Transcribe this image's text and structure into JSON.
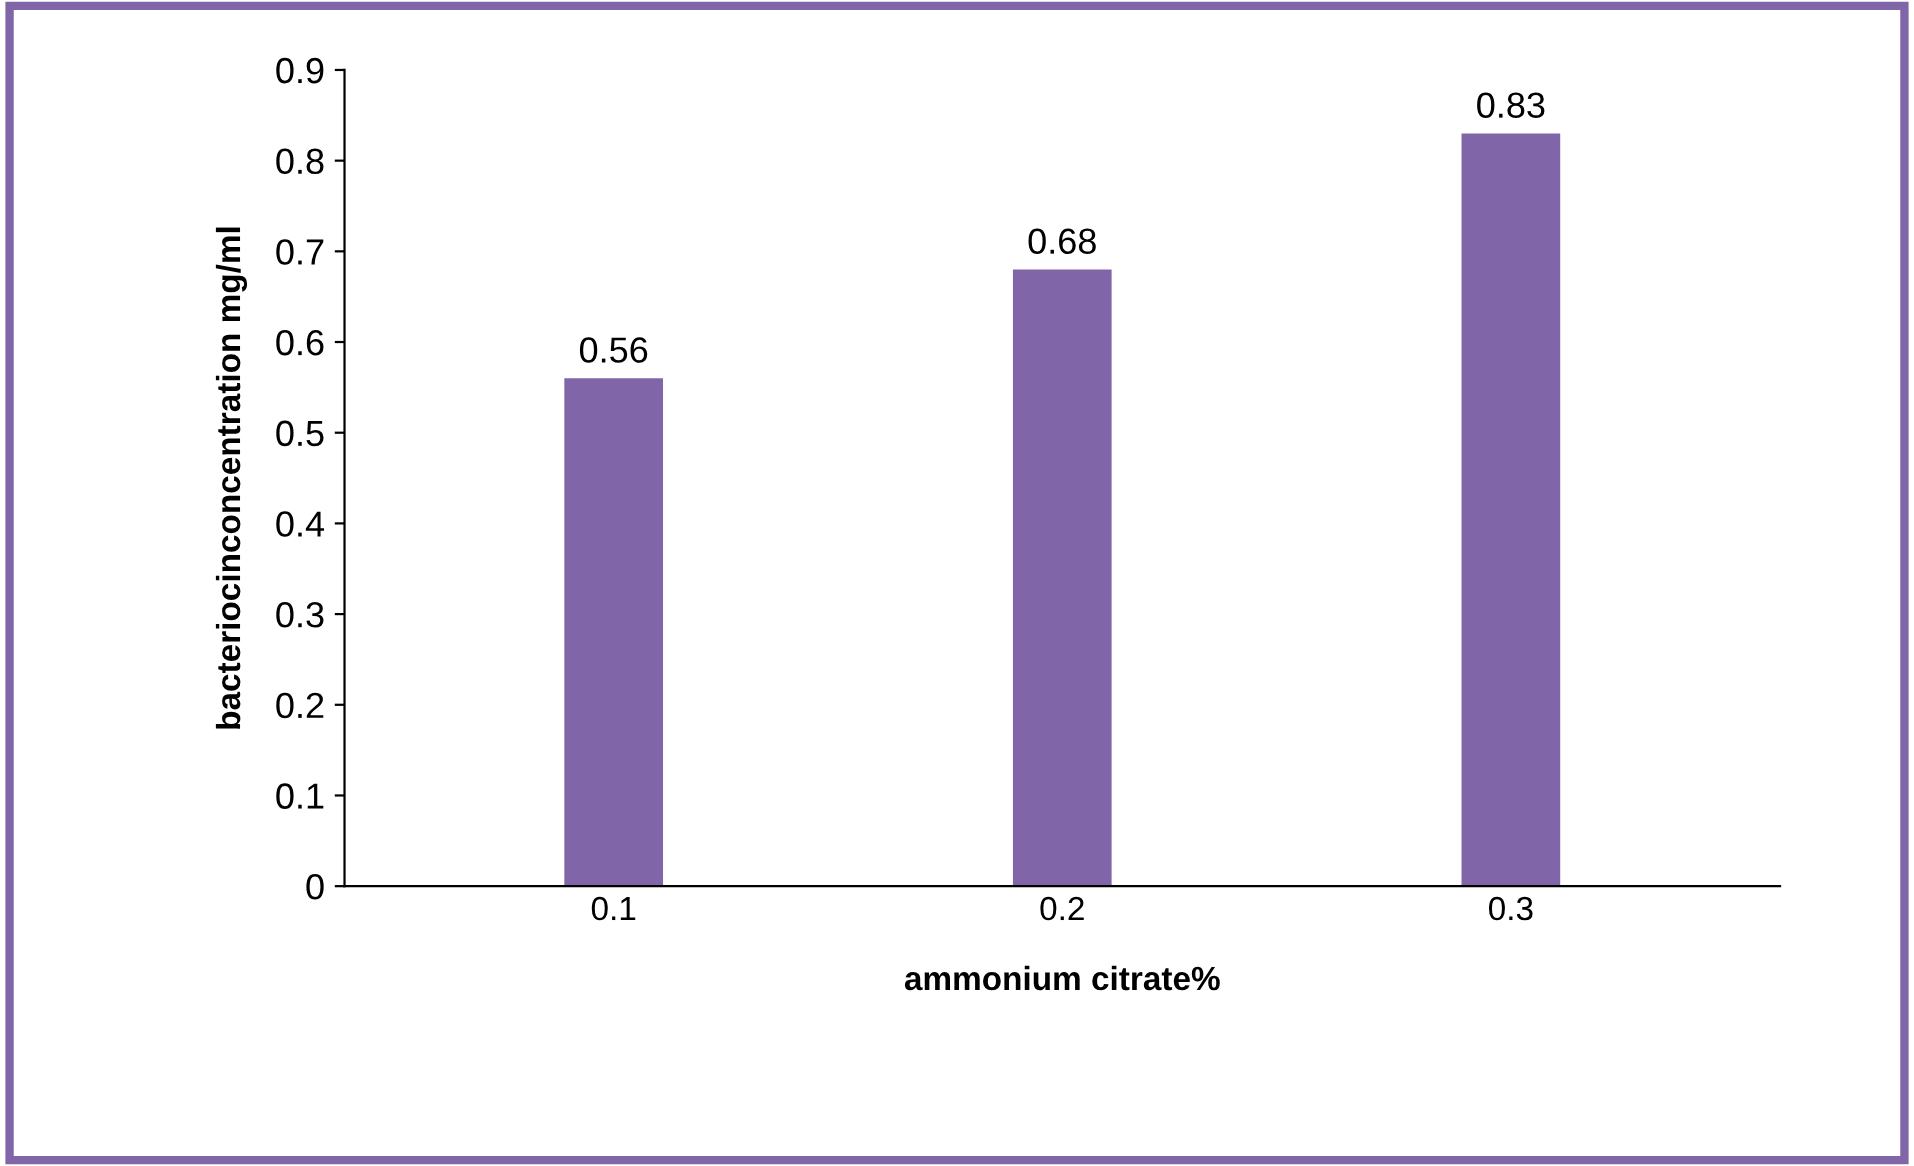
{
  "chart_data": {
    "type": "bar",
    "xlabel": "ammonium citrate%",
    "ylabel": "bacteriocinconcentration mg/ml",
    "categories": [
      "0.1",
      "0.2",
      "0.3"
    ],
    "values": [
      0.56,
      0.68,
      0.83
    ],
    "color": "#8066a8",
    "ylim": [
      0,
      0.9
    ],
    "yticks": [
      0,
      0.1,
      0.2,
      0.3,
      0.4,
      0.5,
      0.6,
      0.7,
      0.8,
      0.9
    ],
    "data_labels": true,
    "grid": false
  }
}
